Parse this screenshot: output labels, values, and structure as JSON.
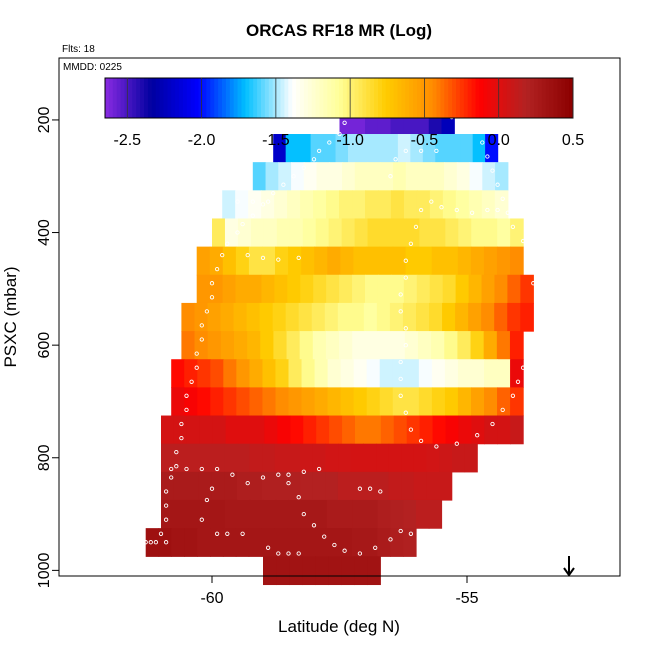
{
  "chart_data": {
    "type": "heatmap",
    "title": "ORCAS RF18 MR (Log)",
    "annotations": {
      "flights": "Flts: 18",
      "date": "MMDD: 0225"
    },
    "xlabel": "Latitude (deg N)",
    "ylabel": "PSXC (mbar)",
    "xlim": [
      -63,
      -52
    ],
    "ylim": [
      1010,
      90
    ],
    "y_reversed": true,
    "x_ticks": [
      -60,
      -55
    ],
    "x_tick_labels": [
      "-60",
      "-55"
    ],
    "y_ticks": [
      200,
      400,
      600,
      800,
      1000
    ],
    "y_tick_labels": [
      "200",
      "400",
      "600",
      "800",
      "1000"
    ],
    "colorbar": {
      "range": [
        -2.65,
        0.5
      ],
      "ticks": [
        -2.5,
        -2.0,
        -1.5,
        -1.0,
        -0.5,
        0.0,
        0.5
      ],
      "tick_labels": [
        "-2.5",
        "-2.0",
        "-1.5",
        "-1.0",
        "-0.5",
        "0.0",
        "0.5"
      ],
      "colors": [
        "#8a2be2",
        "#0000a0",
        "#0000ff",
        "#00bfff",
        "#ffffff",
        "#ffff99",
        "#ffcc00",
        "#ff8c00",
        "#ff0000",
        "#b22222",
        "#8b0000"
      ]
    },
    "grid": false,
    "legend": "colorbar top-inset",
    "bin": {
      "lat_width": 0.5,
      "press_height": 50
    },
    "rows": [
      {
        "p": 200,
        "lat": [
          -57.5,
          -55.25
        ],
        "v": [
          -2.6,
          -2.6,
          -2.55,
          -2.55,
          -2.5,
          -2.5,
          -2.5,
          -2.4,
          -2.25
        ]
      },
      {
        "p": 250,
        "lat": [
          -58.8,
          -54.4
        ],
        "v": [
          -2.2,
          -1.7,
          -1.7,
          -1.6,
          -1.6,
          -1.55,
          -1.5,
          -1.5,
          -1.5,
          -1.5,
          -1.45,
          -1.5,
          -1.55,
          -1.6,
          -1.6,
          -1.6,
          -1.7,
          -2.0
        ]
      },
      {
        "p": 300,
        "lat": [
          -59.2,
          -54.2
        ],
        "v": [
          -1.6,
          -1.5,
          -1.45,
          -1.4,
          -1.35,
          -1.3,
          -1.3,
          -1.25,
          -1.2,
          -1.2,
          -1.2,
          -1.15,
          -1.2,
          -1.2,
          -1.2,
          -1.25,
          -1.3,
          -1.4,
          -1.45,
          -1.5
        ]
      },
      {
        "p": 350,
        "lat": [
          -59.8,
          -54.2
        ],
        "v": [
          -1.45,
          -1.4,
          -1.35,
          -1.3,
          -1.25,
          -1.2,
          -1.15,
          -1.1,
          -1.05,
          -1.0,
          -1.0,
          -0.95,
          -0.95,
          -0.9,
          -0.95,
          -0.95,
          -1.0,
          -1.05,
          -1.1,
          -1.15,
          -1.2,
          -1.25
        ]
      },
      {
        "p": 400,
        "lat": [
          -60.0,
          -53.9
        ],
        "v": [
          -0.95,
          -1.3,
          -1.25,
          -1.2,
          -1.2,
          -1.15,
          -1.15,
          -1.1,
          -1.05,
          -1.0,
          -0.95,
          -0.9,
          -0.85,
          -0.85,
          -0.85,
          -0.85,
          -0.9,
          -0.9,
          -0.95,
          -1.0,
          -1.05,
          -1.05,
          -1.1,
          -1.0
        ]
      },
      {
        "p": 450,
        "lat": [
          -60.3,
          -53.9
        ],
        "v": [
          -0.55,
          -0.6,
          -0.7,
          -0.8,
          -0.9,
          -0.9,
          -0.8,
          -0.75,
          -0.7,
          -0.65,
          -0.6,
          -0.65,
          -0.7,
          -0.7,
          -0.7,
          -0.7,
          -0.75,
          -0.75,
          -0.7,
          -0.7,
          -0.65,
          -0.6,
          -0.55,
          -0.5,
          -0.45
        ]
      },
      {
        "p": 500,
        "lat": [
          -60.3,
          -53.7
        ],
        "v": [
          -0.5,
          -0.5,
          -0.55,
          -0.6,
          -0.6,
          -0.65,
          -0.7,
          -0.75,
          -0.8,
          -0.85,
          -0.9,
          -0.95,
          -1.0,
          -1.05,
          -1.05,
          -1.05,
          -1.0,
          -0.95,
          -0.9,
          -0.85,
          -0.75,
          -0.65,
          -0.55,
          -0.45,
          -0.35,
          -0.25
        ]
      },
      {
        "p": 550,
        "lat": [
          -60.6,
          -53.7
        ],
        "v": [
          -0.45,
          -0.5,
          -0.55,
          -0.6,
          -0.65,
          -0.7,
          -0.75,
          -0.8,
          -0.85,
          -0.9,
          -0.95,
          -1.0,
          -1.05,
          -1.05,
          -1.1,
          -1.05,
          -1.0,
          -0.95,
          -0.9,
          -0.85,
          -0.75,
          -0.65,
          -0.55,
          -0.45,
          -0.35,
          -0.25,
          -0.2
        ]
      },
      {
        "p": 600,
        "lat": [
          -60.6,
          -53.9
        ],
        "v": [
          -0.4,
          -0.45,
          -0.5,
          -0.55,
          -0.6,
          -0.65,
          -0.75,
          -0.85,
          -0.95,
          -1.05,
          -1.15,
          -1.2,
          -1.25,
          -1.3,
          -1.3,
          -1.3,
          -1.3,
          -1.25,
          -1.2,
          -1.15,
          -1.05,
          -0.95,
          -0.8,
          -0.6,
          -0.4,
          -0.2
        ]
      },
      {
        "p": 650,
        "lat": [
          -60.8,
          -53.9
        ],
        "v": [
          -0.15,
          -0.2,
          -0.25,
          -0.3,
          -0.4,
          -0.5,
          -0.6,
          -0.7,
          -0.8,
          -0.95,
          -1.05,
          -1.15,
          -1.25,
          -1.3,
          -1.35,
          -1.4,
          -1.45,
          -1.45,
          -1.45,
          -1.4,
          -1.35,
          -1.3,
          -1.25,
          -1.25,
          -1.2,
          -1.2,
          -0.05
        ]
      },
      {
        "p": 700,
        "lat": [
          -60.8,
          -53.9
        ],
        "v": [
          -0.05,
          -0.1,
          -0.15,
          -0.2,
          -0.25,
          -0.3,
          -0.35,
          -0.4,
          -0.45,
          -0.5,
          -0.55,
          -0.6,
          -0.65,
          -0.7,
          -0.75,
          -0.8,
          -0.85,
          -0.9,
          -0.9,
          -0.85,
          -0.8,
          -0.75,
          -0.65,
          -0.55,
          -0.45,
          -0.35,
          -0.25
        ]
      },
      {
        "p": 750,
        "lat": [
          -61.0,
          -53.9
        ],
        "v": [
          0.05,
          0.05,
          0.05,
          0.05,
          0.05,
          0.0,
          0.0,
          0.0,
          -0.05,
          -0.1,
          -0.15,
          -0.2,
          -0.25,
          -0.3,
          -0.35,
          -0.4,
          -0.4,
          -0.35,
          -0.3,
          -0.25,
          -0.2,
          -0.15,
          -0.1,
          -0.05,
          0.0,
          0.05,
          0.05,
          0.1
        ]
      },
      {
        "p": 800,
        "lat": [
          -61.0,
          -54.8
        ],
        "v": [
          0.15,
          0.15,
          0.15,
          0.15,
          0.15,
          0.15,
          0.15,
          0.12,
          0.12,
          0.1,
          0.1,
          0.08,
          0.08,
          0.06,
          0.06,
          0.05,
          0.05,
          0.05,
          0.05,
          0.05,
          0.05,
          0.06,
          0.08,
          0.1,
          0.1
        ]
      },
      {
        "p": 850,
        "lat": [
          -61.0,
          -55.3
        ],
        "v": [
          0.25,
          0.25,
          0.25,
          0.25,
          0.25,
          0.25,
          0.22,
          0.22,
          0.2,
          0.2,
          0.2,
          0.18,
          0.18,
          0.18,
          0.15,
          0.15,
          0.15,
          0.15,
          0.12,
          0.12,
          0.1,
          0.1,
          0.1
        ]
      },
      {
        "p": 900,
        "lat": [
          -61.0,
          -55.5
        ],
        "v": [
          0.3,
          0.3,
          0.3,
          0.3,
          0.3,
          0.28,
          0.28,
          0.28,
          0.28,
          0.28,
          0.28,
          0.28,
          0.28,
          0.25,
          0.25,
          0.25,
          0.25,
          0.22,
          0.2,
          0.18,
          0.15,
          0.15
        ]
      },
      {
        "p": 950,
        "lat": [
          -61.3,
          -56.0
        ],
        "v": [
          0.35,
          0.35,
          0.32,
          0.32,
          0.3,
          0.3,
          0.3,
          0.3,
          0.3,
          0.3,
          0.3,
          0.3,
          0.3,
          0.3,
          0.3,
          0.3,
          0.28,
          0.28,
          0.25,
          0.22,
          0.2
        ]
      },
      {
        "p": 1000,
        "lat": [
          -59.0,
          -56.7
        ],
        "v": [
          0.32,
          0.32,
          0.32,
          0.32,
          0.32,
          0.32,
          0.32,
          0.32,
          0.32
        ]
      }
    ],
    "track": [
      [
        -61.2,
        950
      ],
      [
        -61.0,
        935
      ],
      [
        -60.9,
        910
      ],
      [
        -60.9,
        885
      ],
      [
        -60.9,
        860
      ],
      [
        -60.8,
        835
      ],
      [
        -60.7,
        815
      ],
      [
        -60.7,
        790
      ],
      [
        -60.6,
        765
      ],
      [
        -60.6,
        740
      ],
      [
        -60.5,
        715
      ],
      [
        -60.5,
        690
      ],
      [
        -60.4,
        665
      ],
      [
        -60.3,
        640
      ],
      [
        -60.3,
        615
      ],
      [
        -60.2,
        590
      ],
      [
        -60.2,
        565
      ],
      [
        -60.1,
        540
      ],
      [
        -60.0,
        515
      ],
      [
        -60.0,
        490
      ],
      [
        -59.9,
        465
      ],
      [
        -59.8,
        440
      ],
      [
        -59.7,
        420
      ],
      [
        -59.5,
        400
      ],
      [
        -59.4,
        385
      ],
      [
        -59.2,
        370
      ],
      [
        -59.0,
        350
      ],
      [
        -58.8,
        330
      ],
      [
        -58.6,
        315
      ],
      [
        -58.4,
        300
      ],
      [
        -58.2,
        285
      ],
      [
        -58.0,
        270
      ],
      [
        -57.9,
        255
      ],
      [
        -57.7,
        240
      ],
      [
        -57.5,
        225
      ],
      [
        -57.4,
        205
      ],
      [
        -57.1,
        190
      ],
      [
        -56.8,
        190
      ],
      [
        -56.5,
        190
      ],
      [
        -56.2,
        190
      ],
      [
        -55.9,
        190
      ],
      [
        -55.6,
        190
      ],
      [
        -55.3,
        195
      ],
      [
        -55.1,
        205
      ],
      [
        -54.9,
        220
      ],
      [
        -54.7,
        240
      ],
      [
        -54.6,
        265
      ],
      [
        -54.5,
        290
      ],
      [
        -54.4,
        315
      ],
      [
        -54.3,
        340
      ],
      [
        -54.2,
        365
      ],
      [
        -54.1,
        390
      ],
      [
        -53.9,
        415
      ],
      [
        -53.8,
        440
      ],
      [
        -53.7,
        465
      ],
      [
        -53.7,
        490
      ],
      [
        -53.6,
        515
      ],
      [
        -53.6,
        540
      ],
      [
        -53.5,
        565
      ],
      [
        -53.7,
        590
      ],
      [
        -53.8,
        615
      ],
      [
        -53.9,
        640
      ],
      [
        -54.0,
        665
      ],
      [
        -54.1,
        690
      ],
      [
        -54.3,
        715
      ],
      [
        -54.5,
        740
      ],
      [
        -54.8,
        760
      ],
      [
        -55.2,
        775
      ],
      [
        -55.6,
        780
      ],
      [
        -55.9,
        770
      ],
      [
        -56.1,
        750
      ],
      [
        -56.2,
        720
      ],
      [
        -56.3,
        690
      ],
      [
        -56.3,
        660
      ],
      [
        -56.3,
        630
      ],
      [
        -56.2,
        600
      ],
      [
        -56.2,
        570
      ],
      [
        -56.3,
        540
      ],
      [
        -56.3,
        510
      ],
      [
        -56.2,
        480
      ],
      [
        -56.2,
        450
      ],
      [
        -56.1,
        420
      ],
      [
        -56.0,
        390
      ],
      [
        -55.9,
        360
      ],
      [
        -55.7,
        345
      ],
      [
        -55.5,
        355
      ],
      [
        -55.2,
        360
      ],
      [
        -54.9,
        365
      ],
      [
        -54.6,
        360
      ],
      [
        -54.4,
        360
      ],
      [
        -56.5,
        300
      ],
      [
        -56.4,
        270
      ],
      [
        -56.2,
        255
      ],
      [
        -55.9,
        255
      ],
      [
        -55.6,
        255
      ],
      [
        -59.3,
        440
      ],
      [
        -59.0,
        445
      ],
      [
        -58.7,
        448
      ],
      [
        -58.3,
        445
      ],
      [
        -59.5,
        345
      ],
      [
        -59.2,
        345
      ],
      [
        -58.9,
        345
      ],
      [
        -60.8,
        820
      ],
      [
        -60.5,
        820
      ],
      [
        -60.2,
        820
      ],
      [
        -59.9,
        820
      ],
      [
        -59.6,
        830
      ],
      [
        -59.3,
        845
      ],
      [
        -59.0,
        835
      ],
      [
        -58.7,
        830
      ],
      [
        -58.5,
        845
      ],
      [
        -58.3,
        870
      ],
      [
        -58.2,
        900
      ],
      [
        -58.0,
        920
      ],
      [
        -57.8,
        940
      ],
      [
        -57.6,
        955
      ],
      [
        -57.4,
        965
      ],
      [
        -57.1,
        970
      ],
      [
        -56.8,
        960
      ],
      [
        -56.5,
        945
      ],
      [
        -56.3,
        930
      ],
      [
        -56.1,
        935
      ],
      [
        -55.9,
        945
      ],
      [
        -55.8,
        960
      ],
      [
        -56.7,
        860
      ],
      [
        -56.9,
        855
      ],
      [
        -57.1,
        855
      ],
      [
        -57.9,
        820
      ],
      [
        -58.2,
        825
      ],
      [
        -58.5,
        830
      ],
      [
        -59.4,
        935
      ],
      [
        -59.7,
        935
      ],
      [
        -59.9,
        935
      ],
      [
        -60.2,
        910
      ],
      [
        -60.1,
        875
      ],
      [
        -60.0,
        855
      ],
      [
        -58.9,
        960
      ],
      [
        -58.7,
        970
      ],
      [
        -58.5,
        970
      ],
      [
        -58.3,
        970
      ],
      [
        -61.3,
        950
      ],
      [
        -61.1,
        950
      ],
      [
        -60.9,
        950
      ]
    ],
    "marker": {
      "lat": -53.0,
      "symbol": "↓"
    }
  }
}
